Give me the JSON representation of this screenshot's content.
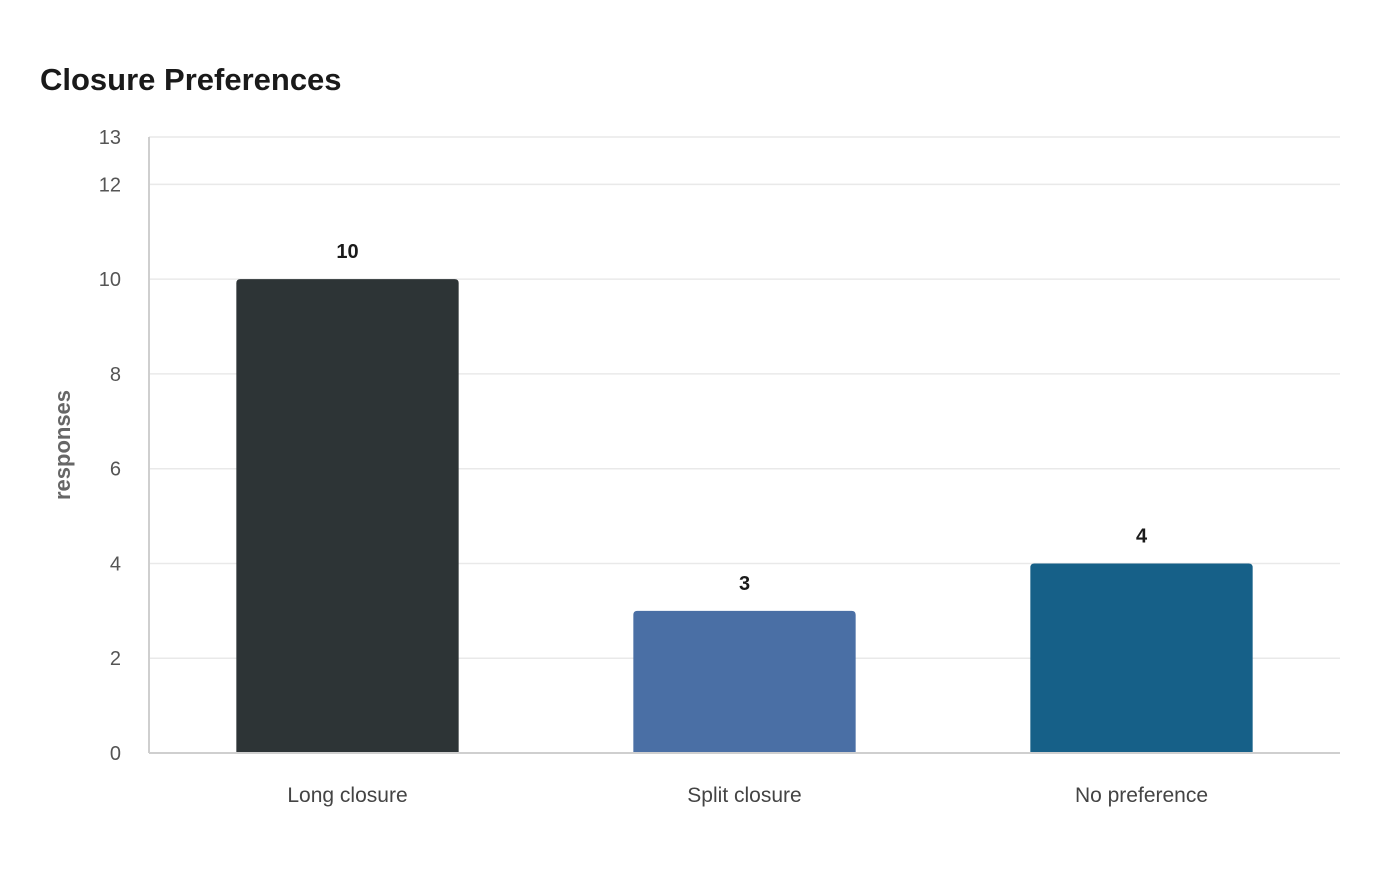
{
  "chart_data": {
    "type": "bar",
    "title": "Closure Preferences",
    "xlabel": "",
    "ylabel": "responses",
    "categories": [
      "Long closure",
      "Split closure",
      "No preference"
    ],
    "values": [
      10,
      3,
      4
    ],
    "colors": [
      "#2d3436",
      "#4a6fa5",
      "#166088"
    ],
    "ylim": [
      0,
      13
    ],
    "yticks": [
      0,
      2,
      4,
      6,
      8,
      10,
      12,
      13
    ],
    "grid": true,
    "data_labels": true,
    "legend": "none"
  }
}
